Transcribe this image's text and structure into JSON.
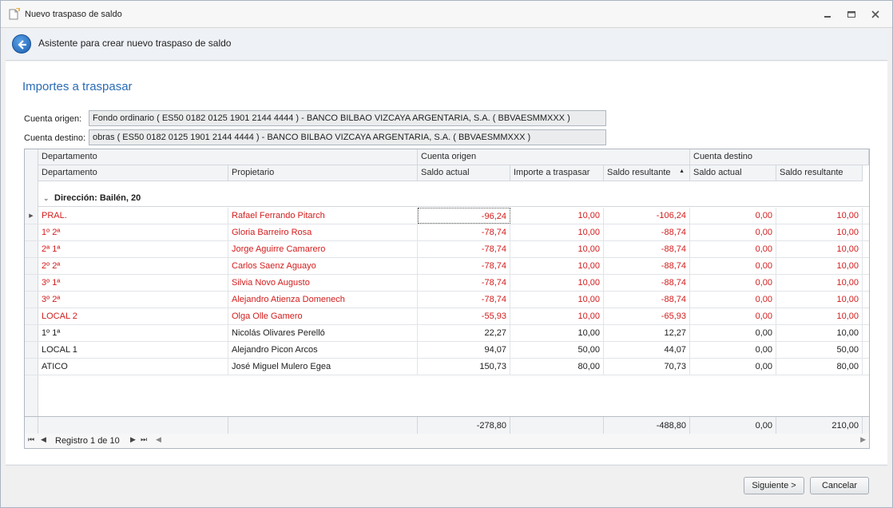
{
  "window": {
    "title": "Nuevo traspaso de saldo",
    "minimize_icon": "minimize-icon",
    "restore_icon": "restore-icon",
    "close_icon": "close-icon"
  },
  "wizard": {
    "header_title": "Asistente para crear nuevo traspaso de saldo",
    "back_icon": "back-arrow-icon"
  },
  "section_title": "Importes a traspasar",
  "form": {
    "origin_label": "Cuenta origen:",
    "origin_value": "Fondo ordinario ( ES50 0182 0125 1901 2144 4444 ) - BANCO BILBAO VIZCAYA ARGENTARIA, S.A. ( BBVAESMMXXX )",
    "dest_label": "Cuenta destino:",
    "dest_value": "obras ( ES50 0182 0125 1901 2144 4444 ) - BANCO BILBAO VIZCAYA ARGENTARIA, S.A. ( BBVAESMMXXX )"
  },
  "grid": {
    "bands": {
      "departamento": "Departamento",
      "cuenta_origen": "Cuenta origen",
      "cuenta_destino": "Cuenta destino"
    },
    "columns": {
      "departamento": "Departamento",
      "propietario": "Propietario",
      "saldo_actual": "Saldo actual",
      "importe": "Importe a traspasar",
      "saldo_resultante": "Saldo resultante",
      "dest_saldo_actual": "Saldo actual",
      "dest_saldo_resultante": "Saldo resultante"
    },
    "sort_indicator": "▲",
    "group_label": "Dirección: Bailén, 20",
    "rows": [
      {
        "dep": "PRAL.",
        "prop": "Rafael Ferrando Pitarch",
        "saldo": "-96,24",
        "importe": "10,00",
        "resultante": "-106,24",
        "dsaldo": "0,00",
        "dres": "10,00"
      },
      {
        "dep": "1º 2ª",
        "prop": "Gloria Barreiro Rosa",
        "saldo": "-78,74",
        "importe": "10,00",
        "resultante": "-88,74",
        "dsaldo": "0,00",
        "dres": "10,00"
      },
      {
        "dep": "2ª 1ª",
        "prop": "Jorge Aguirre Camarero",
        "saldo": "-78,74",
        "importe": "10,00",
        "resultante": "-88,74",
        "dsaldo": "0,00",
        "dres": "10,00"
      },
      {
        "dep": "2º 2ª",
        "prop": "Carlos Saenz Aguayo",
        "saldo": "-78,74",
        "importe": "10,00",
        "resultante": "-88,74",
        "dsaldo": "0,00",
        "dres": "10,00"
      },
      {
        "dep": "3º 1ª",
        "prop": "Silvia Novo Augusto",
        "saldo": "-78,74",
        "importe": "10,00",
        "resultante": "-88,74",
        "dsaldo": "0,00",
        "dres": "10,00"
      },
      {
        "dep": "3º 2ª",
        "prop": "Alejandro Atienza Domenech",
        "saldo": "-78,74",
        "importe": "10,00",
        "resultante": "-88,74",
        "dsaldo": "0,00",
        "dres": "10,00"
      },
      {
        "dep": "LOCAL 2",
        "prop": "Olga Olle Gamero",
        "saldo": "-55,93",
        "importe": "10,00",
        "resultante": "-65,93",
        "dsaldo": "0,00",
        "dres": "10,00"
      },
      {
        "dep": "1º 1ª",
        "prop": "Nicolás Olivares Perelló",
        "saldo": "22,27",
        "importe": "10,00",
        "resultante": "12,27",
        "dsaldo": "0,00",
        "dres": "10,00"
      },
      {
        "dep": "LOCAL 1",
        "prop": "Alejandro Picon Arcos",
        "saldo": "94,07",
        "importe": "50,00",
        "resultante": "44,07",
        "dsaldo": "0,00",
        "dres": "50,00"
      },
      {
        "dep": "ATICO",
        "prop": "José Miguel Mulero Egea",
        "saldo": "150,73",
        "importe": "80,00",
        "resultante": "70,73",
        "dsaldo": "0,00",
        "dres": "80,00"
      }
    ],
    "totals": {
      "saldo": "-278,80",
      "resultante": "-488,80",
      "dsaldo": "0,00",
      "dres": "210,00"
    },
    "navigator": {
      "record_text": "Registro 1 de 10"
    }
  },
  "buttons": {
    "next": "Siguiente >",
    "cancel": "Cancelar"
  },
  "colors": {
    "accent": "#2a6cb5",
    "negative": "#d41c1c"
  }
}
